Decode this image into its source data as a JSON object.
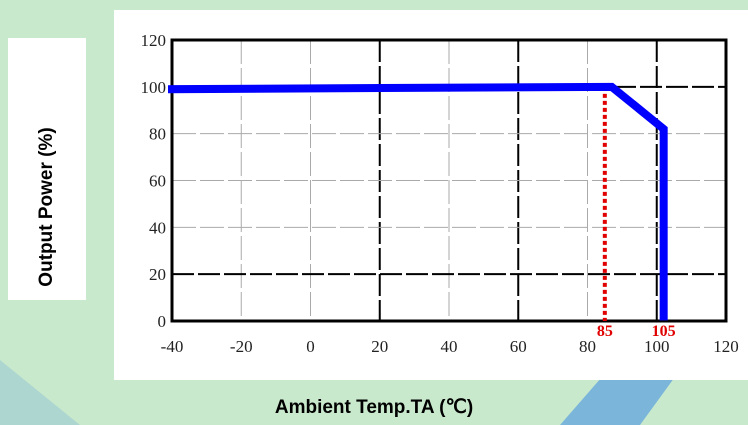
{
  "chart_data": {
    "type": "line",
    "xlabel": "Ambient Temp.TA (℃)",
    "ylabel": "Output Power (%)",
    "xlim": [
      -40,
      120
    ],
    "ylim": [
      0,
      120
    ],
    "x_ticks": [
      "-40",
      "-20",
      "0",
      "20",
      "40",
      "60",
      "80",
      "100",
      "120"
    ],
    "y_ticks": [
      "0",
      "20",
      "40",
      "60",
      "80",
      "100",
      "120"
    ],
    "grid": true,
    "series": [
      {
        "color": "#0000ff",
        "points": [
          {
            "x": -40,
            "y": 99
          },
          {
            "x": 87,
            "y": 100
          },
          {
            "x": 102,
            "y": 82
          },
          {
            "x": 102,
            "y": 2
          }
        ]
      }
    ],
    "annotations": [
      {
        "label": "85",
        "x": 85,
        "color": "#e00000",
        "style": "dotted"
      },
      {
        "label": "105",
        "x": 102,
        "color": "#e00000"
      }
    ]
  },
  "watermark_color": "#5aa0e0"
}
